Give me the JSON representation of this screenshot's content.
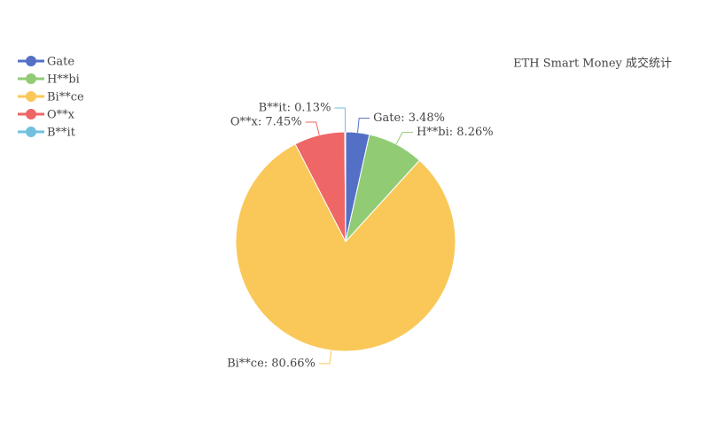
{
  "chart_data": {
    "type": "pie",
    "title": "ETH Smart Money 成交统计",
    "categories": [
      "Gate",
      "H**bi",
      "Bi**ce",
      "O**x",
      "B**it"
    ],
    "values": [
      3.48,
      8.26,
      80.66,
      7.45,
      0.13
    ],
    "value_labels": [
      "Gate: 3.48%",
      "H**bi: 8.26%",
      "Bi**ce: 80.66%",
      "O**x: 7.45%",
      "B**it: 0.13%"
    ],
    "colors": [
      "#5470c6",
      "#91cc75",
      "#fac858",
      "#ee6666",
      "#73c0de"
    ],
    "legend": "top-left"
  }
}
